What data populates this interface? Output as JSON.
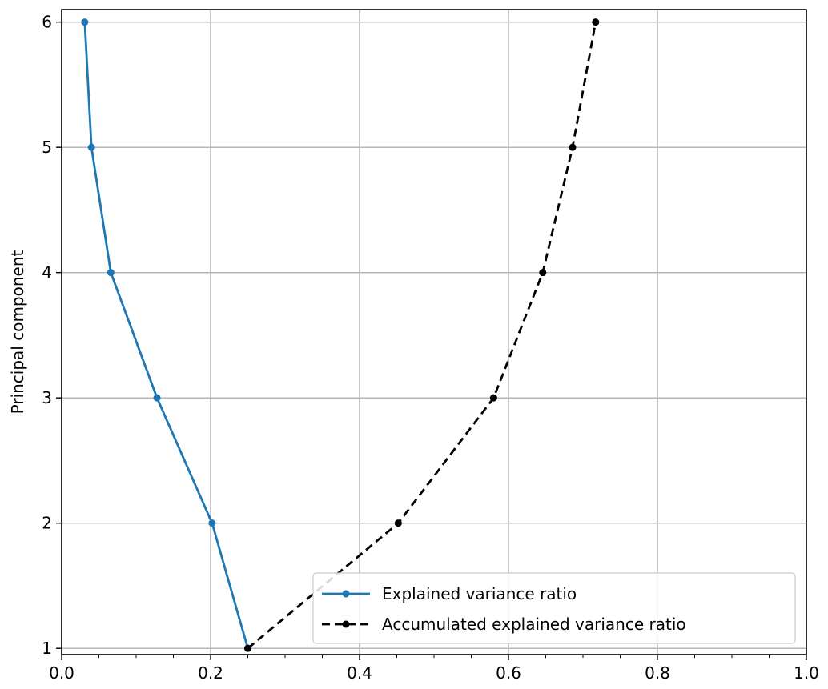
{
  "chart_data": {
    "type": "line",
    "title": "",
    "xlabel": "",
    "ylabel": "Principal component",
    "xlim": [
      0.0,
      1.0
    ],
    "ylim": [
      0.95,
      6.1
    ],
    "grid": true,
    "legend_position": "bottom-right",
    "x_ticks": [
      "0.0",
      "0.2",
      "0.4",
      "0.6",
      "0.8",
      "1.0"
    ],
    "y_ticks": [
      "1",
      "2",
      "3",
      "4",
      "5",
      "6"
    ],
    "series": [
      {
        "name": "Explained variance ratio",
        "color": "#1f77b4",
        "line_style": "solid",
        "marker": "circle",
        "points": [
          {
            "x": 0.25,
            "y": 1
          },
          {
            "x": 0.202,
            "y": 2
          },
          {
            "x": 0.128,
            "y": 3
          },
          {
            "x": 0.066,
            "y": 4
          },
          {
            "x": 0.04,
            "y": 5
          },
          {
            "x": 0.031,
            "y": 6
          }
        ]
      },
      {
        "name": "Accumulated explained variance ratio",
        "color": "#000000",
        "line_style": "dashed",
        "marker": "circle",
        "points": [
          {
            "x": 0.25,
            "y": 1
          },
          {
            "x": 0.452,
            "y": 2
          },
          {
            "x": 0.58,
            "y": 3
          },
          {
            "x": 0.646,
            "y": 4
          },
          {
            "x": 0.686,
            "y": 5
          },
          {
            "x": 0.717,
            "y": 6
          }
        ]
      }
    ]
  }
}
